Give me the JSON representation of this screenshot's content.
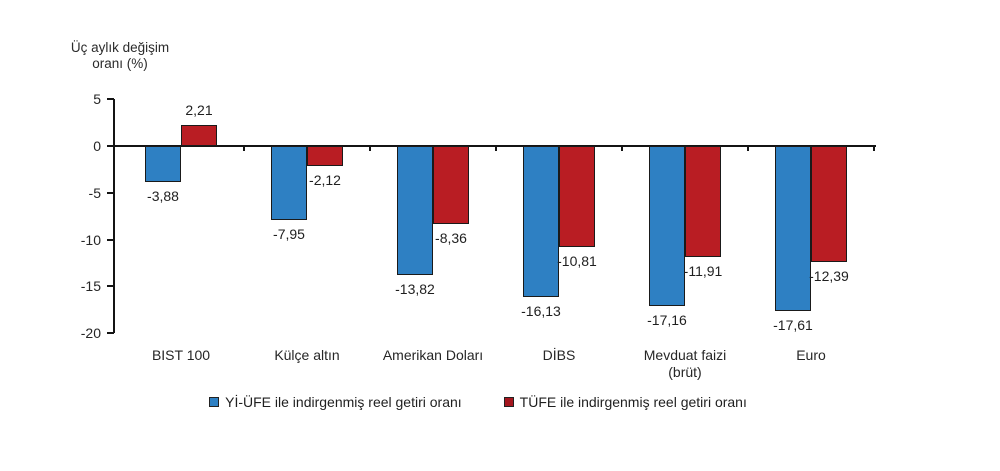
{
  "chart_data": {
    "type": "bar",
    "axis_title_line1": "Üç aylık değişim",
    "axis_title_line2": "oranı (%)",
    "ylabel": "Üç aylık değişim oranı (%)",
    "xlabel": "",
    "categories": [
      "BIST 100",
      "Külçe altın",
      "Amerikan Doları",
      "DİBS",
      "Mevduat faizi\n(brüt)",
      "Euro"
    ],
    "series": [
      {
        "name": "Yİ-ÜFE ile indirgenmiş reel getiri oranı",
        "color": "#2E80C3",
        "values": [
          -3.88,
          -7.95,
          -13.82,
          -16.13,
          -17.16,
          -17.61
        ],
        "value_labels": [
          "-3,88",
          "-7,95",
          "-13,82",
          "-16,13",
          "-17,16",
          "-17,61"
        ]
      },
      {
        "name": "TÜFE ile indirgenmiş reel getiri oranı",
        "color": "#B91D23",
        "legend_color": "#A4161E",
        "values": [
          2.21,
          -2.12,
          -8.36,
          -10.81,
          -11.91,
          -12.39
        ],
        "value_labels": [
          "2,21",
          "-2,12",
          "-8,36",
          "-10,81",
          "-11,91",
          "-12,39"
        ]
      }
    ],
    "y_ticks": [
      5,
      0,
      -5,
      -10,
      -15,
      -20
    ],
    "y_tick_labels": [
      "5",
      "0",
      "-5",
      "-10",
      "-15",
      "-20"
    ],
    "ylim": [
      -20,
      5
    ],
    "grid": false,
    "legend_position": "bottom"
  }
}
